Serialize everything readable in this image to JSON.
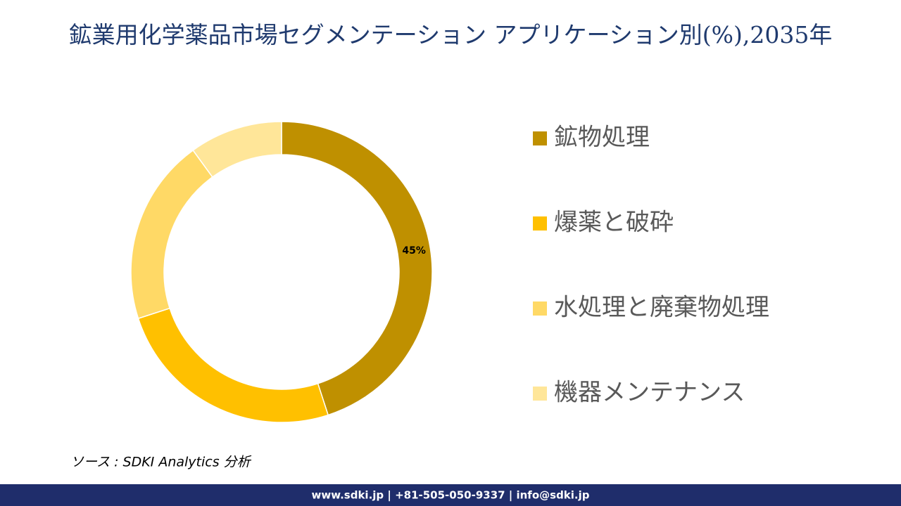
{
  "chart_data": {
    "type": "donut",
    "title": "鉱業用化学薬品市場セグメンテーション アプリケーション別(%),2035年",
    "categories": [
      "鉱物処理",
      "爆薬と破砕",
      "水処理と廃棄物処理",
      "機器メンテナンス"
    ],
    "values": [
      45,
      25,
      20,
      10
    ],
    "value_labels": [
      "45%",
      null,
      null,
      null
    ],
    "colors": [
      "#BF9000",
      "#FFC000",
      "#FFD966",
      "#FFE699"
    ],
    "legend": "right"
  },
  "source": "ソース : SDKI Analytics 分析",
  "footer": "www.sdki.jp | +81-505-050-9337 | info@sdki.jp"
}
